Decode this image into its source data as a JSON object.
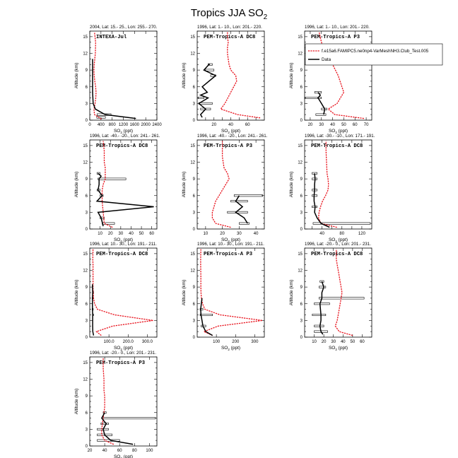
{
  "figure": {
    "title_main": "Tropics JJA SO",
    "title_sub": "2",
    "xlabel": "SO",
    "xlabel_sub": "2",
    "xlabel_unit": " (ppt)",
    "ylabel": "Altitude (km)"
  },
  "legend": {
    "model_label": "f.e15a6.FAMIPC5.ne0np4-VarMeshNH3.Club_Test.005",
    "data_label": "Data",
    "model_color": "#e8141e",
    "data_color": "#000000"
  },
  "chart_data": [
    {
      "type": "line",
      "header": "2004, Lat: 15.- 25., Lon: 255.- 270.",
      "campaign": "INTEXA-Jul",
      "xlim": [
        0,
        2400
      ],
      "ylim": [
        0,
        16
      ],
      "xticks": [
        0,
        400,
        800,
        1200,
        1600,
        2000,
        2400
      ],
      "xticklabels": [
        "0",
        "400",
        "800",
        "1200",
        "1600",
        "2000",
        "2400"
      ],
      "yticks": [
        0,
        3,
        6,
        9,
        12,
        15
      ],
      "model": {
        "x": [
          420,
          170,
          150,
          190,
          215,
          225,
          210,
          180,
          160,
          150,
          160,
          180,
          200,
          210,
          170
        ],
        "y": [
          0.2,
          1,
          2,
          3,
          4,
          5,
          6,
          7,
          8,
          9,
          10,
          11,
          12,
          14,
          15.8
        ]
      },
      "data": {
        "x": [
          1650,
          550,
          200,
          120,
          110,
          100,
          100,
          100,
          100,
          100,
          100,
          100
        ],
        "y": [
          0.3,
          1,
          2,
          3,
          4,
          5,
          6,
          7,
          8,
          9,
          10,
          11
        ]
      },
      "bars": [
        {
          "y": 0.5,
          "lo": 250,
          "hi": 560
        },
        {
          "y": 1,
          "lo": 260,
          "hi": 760
        }
      ]
    },
    {
      "type": "line",
      "header": "1996, Lat: 1.- 10., Lon: 201.- 220.",
      "campaign": "PEM-Tropics-A DC8",
      "xlim": [
        0,
        80
      ],
      "ylim": [
        0,
        16
      ],
      "xticks": [
        10,
        20,
        30,
        40,
        50,
        60,
        70
      ],
      "xticklabels": [
        "",
        "20",
        "",
        "40",
        "",
        "60",
        ""
      ],
      "yticks": [
        0,
        3,
        6,
        9,
        12,
        15
      ],
      "model": {
        "x": [
          75,
          48,
          28,
          33,
          40,
          47,
          46,
          40,
          38,
          37,
          36,
          36,
          37,
          36,
          36
        ],
        "y": [
          0.4,
          1,
          2,
          3,
          5,
          7,
          8,
          9,
          10,
          11,
          12,
          13,
          14,
          15,
          15.8
        ]
      },
      "data": {
        "x": [
          6,
          4,
          10,
          2,
          13,
          4,
          12,
          6,
          22,
          8,
          14,
          15
        ],
        "y": [
          0.5,
          1,
          2,
          3,
          4,
          4.5,
          5,
          6,
          8,
          9,
          10,
          10
        ]
      },
      "bars": [
        {
          "y": 2,
          "lo": 4,
          "hi": 16
        },
        {
          "y": 3,
          "lo": 2,
          "hi": 18
        },
        {
          "y": 4,
          "lo": 1,
          "hi": 8
        },
        {
          "y": 8,
          "lo": 16,
          "hi": 22
        },
        {
          "y": 9,
          "lo": 10,
          "hi": 20
        },
        {
          "y": 10,
          "lo": 13,
          "hi": 18
        }
      ]
    },
    {
      "type": "line",
      "header": "1996, Lat: 1.- 10., Lon: 201.- 220.",
      "campaign": "PEM-Tropics-A P3",
      "xlim": [
        15,
        75
      ],
      "ylim": [
        0,
        16
      ],
      "xticks": [
        20,
        30,
        40,
        50,
        60,
        70
      ],
      "xticklabels": [
        "20",
        "30",
        "40",
        "50",
        "60",
        "70"
      ],
      "yticks": [
        0,
        3,
        6,
        9,
        12,
        15
      ],
      "model": {
        "x": [
          68,
          42,
          36,
          44,
          50,
          45,
          40,
          37,
          34,
          32,
          30,
          28
        ],
        "y": [
          0.3,
          1,
          2,
          3,
          5,
          8,
          10,
          11,
          12,
          13,
          14,
          15.8
        ]
      },
      "data": {
        "x": [
          32,
          33,
          30,
          27,
          29,
          27
        ],
        "y": [
          1,
          2,
          3,
          4,
          4.5,
          5
        ]
      },
      "bars": [
        {
          "y": 1,
          "lo": 25,
          "hi": 34
        },
        {
          "y": 2,
          "lo": 30,
          "hi": 35
        },
        {
          "y": 4,
          "lo": 15,
          "hi": 30
        },
        {
          "y": 5,
          "lo": 24,
          "hi": 30
        }
      ]
    },
    {
      "type": "line",
      "header": "1996, Lat: -40.- -20., Lon: 241.- 261.",
      "campaign": "PEM-Tropics-A DC8",
      "xlim": [
        0,
        65
      ],
      "ylim": [
        0,
        16
      ],
      "xticks": [
        10,
        20,
        30,
        40,
        50,
        60
      ],
      "xticklabels": [
        "10",
        "20",
        "30",
        "40",
        "50",
        "60"
      ],
      "yticks": [
        0,
        3,
        6,
        9,
        12,
        15
      ],
      "model": {
        "x": [
          22,
          14,
          13,
          12,
          12,
          13,
          15,
          15,
          15,
          14,
          14,
          14,
          13
        ],
        "y": [
          0.3,
          1,
          3,
          5,
          7,
          8,
          9,
          10,
          11,
          12,
          13,
          14,
          15.8
        ]
      },
      "data": {
        "x": [
          13,
          11,
          8,
          62,
          7,
          12,
          8,
          9,
          9,
          11,
          8
        ],
        "y": [
          0.5,
          2,
          3,
          4,
          5,
          6,
          7,
          8,
          9,
          9.5,
          10
        ]
      },
      "bars": [
        {
          "y": 1,
          "lo": 12,
          "hi": 24
        },
        {
          "y": 2,
          "lo": 10,
          "hi": 14
        },
        {
          "y": 9,
          "lo": 8,
          "hi": 35
        },
        {
          "y": 10,
          "lo": 7,
          "hi": 10
        },
        {
          "y": 6,
          "lo": 10,
          "hi": 13
        },
        {
          "y": 7,
          "lo": 7,
          "hi": 10
        }
      ]
    },
    {
      "type": "line",
      "header": "1996, Lat: -40.- -20., Lon: 241.- 261.",
      "campaign": "PEM-Tropics-A P3",
      "xlim": [
        5,
        45
      ],
      "ylim": [
        0,
        16
      ],
      "xticks": [
        10,
        20,
        30,
        40
      ],
      "xticklabels": [
        "10",
        "20",
        "30",
        "40"
      ],
      "yticks": [
        0,
        3,
        6,
        9,
        12,
        15
      ],
      "model": {
        "x": [
          25,
          16,
          14,
          14,
          15,
          16,
          18,
          20,
          22,
          24,
          23,
          21,
          20,
          20
        ],
        "y": [
          0.3,
          1,
          2,
          3,
          4,
          5,
          6,
          7,
          8,
          9,
          10,
          11,
          13,
          15.8
        ]
      },
      "data": {
        "x": [
          35,
          33,
          28,
          32,
          28,
          30
        ],
        "y": [
          1,
          2,
          3,
          4,
          5,
          6
        ]
      },
      "bars": [
        {
          "y": 1,
          "lo": 30,
          "hi": 36
        },
        {
          "y": 3,
          "lo": 23,
          "hi": 35
        },
        {
          "y": 5,
          "lo": 25,
          "hi": 35
        },
        {
          "y": 6,
          "lo": 27,
          "hi": 44
        }
      ]
    },
    {
      "type": "line",
      "header": "1996, Lat: -30.- -10., Lon: 171.- 191.",
      "campaign": "PEM-Tropics-A DC8",
      "xlim": [
        5,
        140
      ],
      "ylim": [
        0,
        16
      ],
      "xticks": [
        20,
        40,
        60,
        80,
        100,
        120
      ],
      "xticklabels": [
        "",
        "40",
        "",
        "80",
        "",
        "120"
      ],
      "yticks": [
        0,
        3,
        6,
        9,
        12,
        15
      ],
      "model": {
        "x": [
          70,
          38,
          33,
          34,
          37,
          41,
          47,
          52,
          53,
          52,
          50,
          49,
          48,
          48
        ],
        "y": [
          0.3,
          1,
          2,
          3,
          4,
          5,
          6,
          7,
          8,
          9,
          10,
          12,
          14,
          15.8
        ]
      },
      "data": {
        "x": [
          55,
          38,
          30,
          25,
          26,
          24,
          24,
          25,
          25,
          26,
          25
        ],
        "y": [
          0.3,
          1,
          2,
          3,
          4,
          5,
          6,
          7,
          8,
          9,
          10
        ]
      },
      "bars": [
        {
          "y": 1,
          "lo": 22,
          "hi": 137
        },
        {
          "y": 4,
          "lo": 20,
          "hi": 30
        },
        {
          "y": 6,
          "lo": 20,
          "hi": 30
        },
        {
          "y": 7,
          "lo": 20,
          "hi": 30
        },
        {
          "y": 9,
          "lo": 20,
          "hi": 30
        },
        {
          "y": 10,
          "lo": 20,
          "hi": 30
        }
      ]
    },
    {
      "type": "line",
      "header": "1996, Lat: 10.- 30., Lon: 191.- 211.",
      "campaign": "PEM-Tropics-A DC8",
      "xlim": [
        0,
        350
      ],
      "ylim": [
        0,
        16
      ],
      "xticks": [
        100,
        200,
        300
      ],
      "xticklabels": [
        "100.0",
        "200.0",
        "300.0"
      ],
      "yticks": [
        0,
        3,
        6,
        9,
        12,
        15
      ],
      "model": {
        "x": [
          60,
          35,
          120,
          330,
          130,
          40,
          25,
          20,
          18,
          17,
          17,
          17,
          16,
          17
        ],
        "y": [
          0.3,
          1,
          2,
          3,
          4,
          5,
          6,
          7,
          8,
          9,
          11,
          13,
          14,
          15.8
        ]
      },
      "data": {
        "x": [
          20,
          16,
          15,
          15,
          15,
          14,
          14,
          14,
          15,
          14
        ],
        "y": [
          0.3,
          1,
          2,
          3,
          4,
          5,
          6,
          7,
          8,
          9.5
        ]
      },
      "bars": [
        {
          "y": 4,
          "lo": 14,
          "hi": 20
        },
        {
          "y": 5,
          "lo": 13,
          "hi": 18
        },
        {
          "y": 7,
          "lo": 13,
          "hi": 18
        },
        {
          "y": 8,
          "lo": 14,
          "hi": 20
        }
      ]
    },
    {
      "type": "line",
      "header": "1996, Lat: 10.- 30., Lon: 191.- 211.",
      "campaign": "PEM-Tropics-A P3",
      "xlim": [
        0,
        350
      ],
      "ylim": [
        0,
        16
      ],
      "xticks": [
        100,
        200,
        300
      ],
      "xticklabels": [
        "100",
        "200",
        "300"
      ],
      "yticks": [
        0,
        3,
        6,
        9,
        12,
        15
      ],
      "model": {
        "x": [
          80,
          35,
          110,
          340,
          120,
          40,
          28,
          22,
          20,
          19,
          19,
          18,
          18,
          19
        ],
        "y": [
          0.3,
          1,
          2,
          3,
          4,
          5,
          6,
          7,
          8,
          9,
          11,
          13,
          14,
          15.8
        ]
      },
      "data": {
        "x": [
          80,
          45,
          30,
          25,
          20,
          18,
          25
        ],
        "y": [
          0.3,
          1,
          2,
          3,
          4,
          5,
          7
        ]
      },
      "bars": [
        {
          "y": 2,
          "lo": 20,
          "hi": 45
        },
        {
          "y": 4,
          "lo": 15,
          "hi": 80
        },
        {
          "y": 5,
          "lo": 15,
          "hi": 30
        }
      ]
    },
    {
      "type": "line",
      "header": "1996, Lat: -20.- 0., Lon: 201.- 231.",
      "campaign": "PEM-Tropics-A DC8",
      "xlim": [
        0,
        70
      ],
      "ylim": [
        0,
        16
      ],
      "xticks": [
        10,
        20,
        30,
        40,
        50,
        60
      ],
      "xticklabels": [
        "10",
        "20",
        "30",
        "40",
        "50",
        "60"
      ],
      "yticks": [
        0,
        3,
        6,
        9,
        12,
        15
      ],
      "model": {
        "x": [
          50,
          36,
          32,
          34,
          36,
          38,
          39,
          38,
          37,
          36,
          35,
          34,
          33,
          33
        ],
        "y": [
          0.3,
          1,
          2,
          3,
          5,
          7,
          8,
          9,
          10,
          11,
          12,
          13,
          14,
          15.8
        ]
      },
      "data": {
        "x": [
          19,
          17,
          16,
          17,
          17,
          16,
          18,
          18,
          20,
          18
        ],
        "y": [
          0.5,
          1,
          2,
          3,
          4,
          6,
          7,
          8,
          9,
          10
        ]
      },
      "bars": [
        {
          "y": 1,
          "lo": 10,
          "hi": 24
        },
        {
          "y": 2,
          "lo": 10,
          "hi": 20
        },
        {
          "y": 4,
          "lo": 8,
          "hi": 22
        },
        {
          "y": 6,
          "lo": 10,
          "hi": 26
        },
        {
          "y": 7,
          "lo": 15,
          "hi": 62
        },
        {
          "y": 9,
          "lo": 15,
          "hi": 22
        },
        {
          "y": 10,
          "lo": 16,
          "hi": 20
        }
      ]
    },
    {
      "type": "line",
      "header": "1996, Lat: -20.- 0., Lon: 201.- 231.",
      "campaign": "PEM-Tropics-A P3",
      "xlim": [
        20,
        110
      ],
      "ylim": [
        0,
        16
      ],
      "xticks": [
        20,
        40,
        60,
        80,
        100
      ],
      "xticklabels": [
        "20",
        "40",
        "60",
        "80",
        "100"
      ],
      "yticks": [
        0,
        3,
        6,
        9,
        12,
        15
      ],
      "model": {
        "x": [
          52,
          40,
          36,
          36,
          37,
          38,
          39,
          40,
          40,
          40,
          39,
          39,
          38,
          38
        ],
        "y": [
          0.3,
          1,
          2,
          3,
          4,
          5,
          6,
          7,
          8,
          9,
          10,
          12,
          14,
          15.8
        ]
      },
      "data": {
        "x": [
          78,
          48,
          40,
          38,
          42,
          36,
          40
        ],
        "y": [
          0.3,
          1,
          2,
          3,
          4,
          5,
          6
        ]
      },
      "bars": [
        {
          "y": 1,
          "lo": 30,
          "hi": 60
        },
        {
          "y": 2,
          "lo": 30,
          "hi": 50
        },
        {
          "y": 3,
          "lo": 30,
          "hi": 45
        },
        {
          "y": 4,
          "lo": 35,
          "hi": 45
        },
        {
          "y": 5,
          "lo": 38,
          "hi": 108
        },
        {
          "y": 6,
          "lo": 38,
          "hi": 42
        }
      ]
    }
  ]
}
